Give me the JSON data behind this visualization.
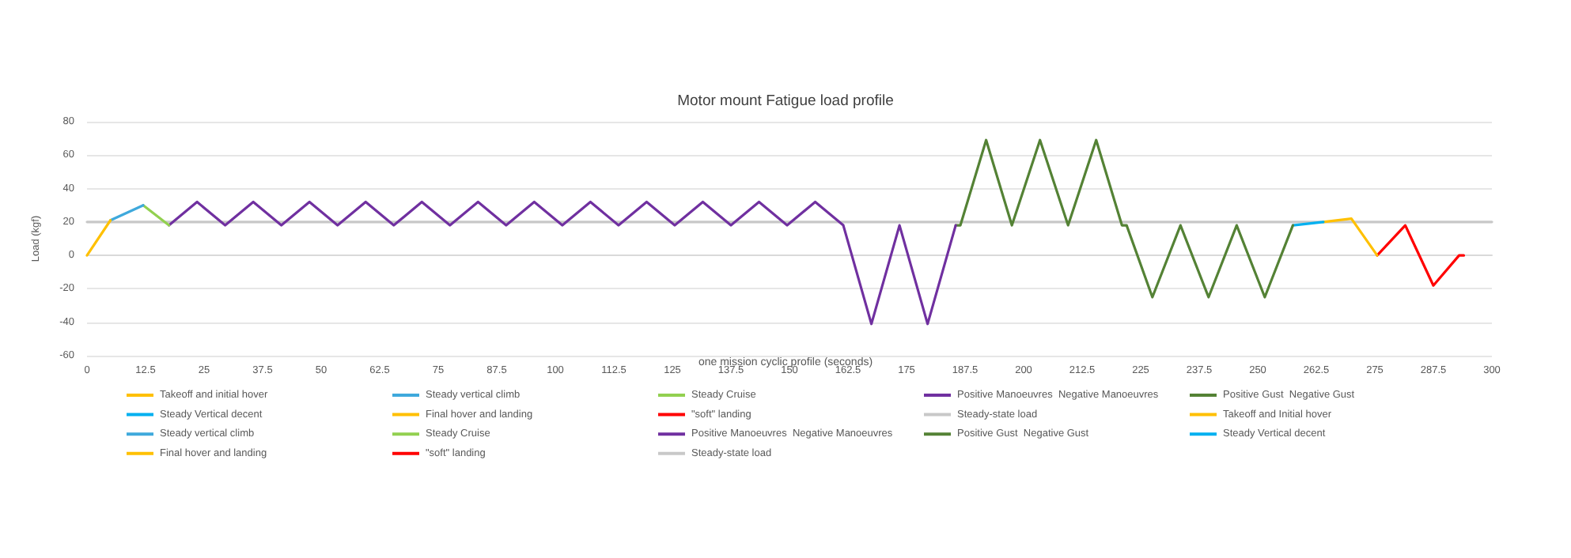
{
  "chart_data": {
    "type": "line",
    "title": "Motor mount Fatigue load profile",
    "xlabel": "one mission cyclic profile (seconds)",
    "ylabel": "Load (kgf)",
    "xlim": [
      0,
      300
    ],
    "xticks": [
      0,
      12.5,
      25,
      37.5,
      50,
      62.5,
      75,
      87.5,
      100,
      112.5,
      125,
      137.5,
      150,
      162.5,
      175,
      187.5,
      200,
      212.5,
      225,
      237.5,
      250,
      262.5,
      275,
      287.5,
      300
    ],
    "ylim": [
      -60,
      80
    ],
    "yticks": [
      -60,
      -40,
      -20,
      0,
      20,
      40,
      60,
      80
    ],
    "grid": "y",
    "legend": "bottom",
    "marker": "none",
    "line_style": "solid",
    "series": [
      {
        "name": "Takeoff and initial hover",
        "color": "#ffc000",
        "x": [
          0,
          5
        ],
        "values": [
          0,
          21
        ]
      },
      {
        "name": "Steady vertical climb",
        "color": "#3fa9dc",
        "x": [
          5,
          12
        ],
        "values": [
          21,
          30
        ]
      },
      {
        "name": "Steady Cruise",
        "color": "#92d050",
        "x": [
          12,
          17.5
        ],
        "values": [
          30,
          18
        ]
      },
      {
        "name": "Positive Manoeuvres  Negative Manoeuvres",
        "color": "#7030a0",
        "x": [
          17.5,
          23.5,
          29.5,
          35.5,
          41.5,
          47.5,
          53.5,
          59.5,
          65.5,
          71.5,
          77.5,
          83.5,
          89.5,
          95.5,
          101.5,
          107.5,
          113.5,
          119.5,
          125.5,
          131.5,
          137.5,
          143.5,
          149.5,
          155.5,
          161.5,
          167.5,
          173.5,
          179.5,
          185.5
        ],
        "values": [
          18,
          32,
          18,
          32,
          18,
          32,
          18,
          32,
          18,
          32,
          18,
          32,
          18,
          32,
          18,
          32,
          18,
          32,
          18,
          32,
          18,
          32,
          18,
          32,
          18,
          -41,
          18,
          -41,
          18
        ]
      },
      {
        "name": "Positive Gust  Negative Gust",
        "color": "#548235",
        "x": [
          185.5,
          186.5,
          192,
          197.5,
          203.5,
          209.5,
          215.5,
          221,
          222,
          227.5,
          233.5,
          239.5,
          245.5,
          251.5,
          257.5
        ],
        "values": [
          18,
          18,
          69,
          18,
          69,
          18,
          69,
          18,
          18,
          -25,
          18,
          -25,
          18,
          -25,
          18
        ]
      },
      {
        "name": "Steady Vertical decent",
        "color": "#00b0f0",
        "x": [
          257.5,
          264
        ],
        "values": [
          18,
          20
        ]
      },
      {
        "name": "Final hover and landing",
        "color": "#ffc000",
        "x": [
          264,
          270,
          275.5
        ],
        "values": [
          20,
          22,
          0
        ]
      },
      {
        "name": "\"soft\" landing",
        "color": "#ff0000",
        "x": [
          275.5,
          281.5,
          287.5,
          293,
          294
        ],
        "values": [
          0,
          18,
          -18,
          0,
          0
        ]
      },
      {
        "name": "Steady-state load",
        "color": "#c8c8c8",
        "x": [
          0,
          300
        ],
        "values": [
          20,
          20
        ]
      },
      {
        "name": "Takeoff and Initial hover",
        "color": "#ffc000"
      },
      {
        "name": "Steady vertical climb",
        "color": "#3fa9dc"
      },
      {
        "name": "Steady Cruise",
        "color": "#92d050"
      },
      {
        "name": "Positive Manoeuvres  Negative Manoeuvres",
        "color": "#7030a0"
      },
      {
        "name": "Positive Gust  Negative Gust",
        "color": "#548235"
      },
      {
        "name": "Steady Vertical decent",
        "color": "#00b0f0"
      },
      {
        "name": "Final hover and landing",
        "color": "#ffc000"
      },
      {
        "name": "\"soft\" landing",
        "color": "#ff0000"
      },
      {
        "name": "Steady-state load",
        "color": "#c8c8c8"
      }
    ]
  }
}
